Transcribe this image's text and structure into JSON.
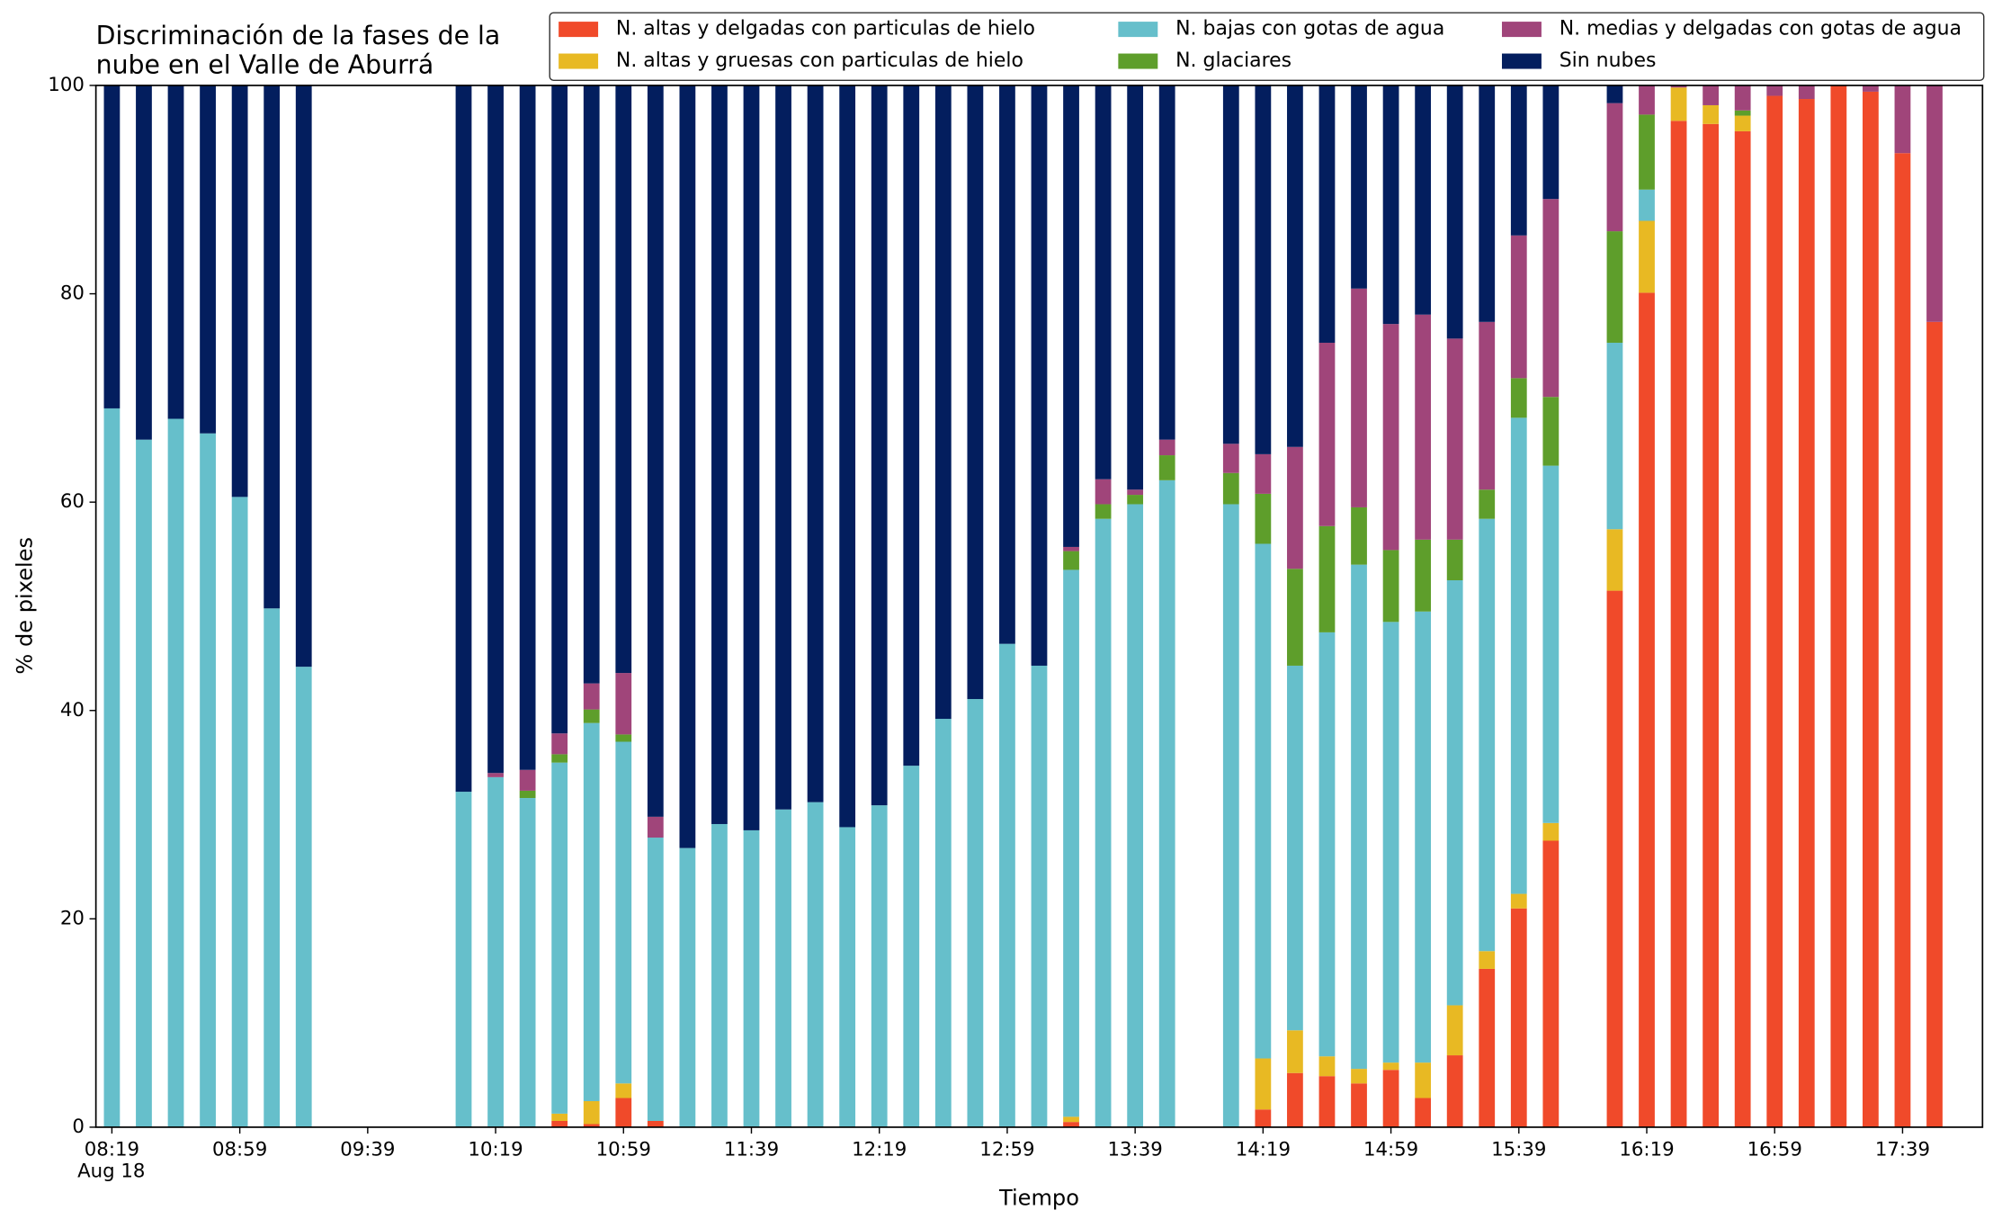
{
  "chart_data": {
    "type": "stacked_bar",
    "title": [
      "Discriminación de la fases de la",
      "nube en el Valle de Aburrá"
    ],
    "xlabel": "Tiempo",
    "ylabel": "% de pixeles",
    "date_label": "Aug 18",
    "x": [
      "08:19",
      "08:29",
      "08:39",
      "08:49",
      "08:59",
      "09:09",
      "09:19",
      "10:09",
      "10:19",
      "10:29",
      "10:39",
      "10:49",
      "10:59",
      "11:09",
      "11:19",
      "11:29",
      "11:39",
      "11:49",
      "11:59",
      "12:09",
      "12:19",
      "12:29",
      "12:39",
      "12:49",
      "12:59",
      "13:09",
      "13:19",
      "13:29",
      "13:39",
      "13:49",
      "14:09",
      "14:19",
      "14:29",
      "14:39",
      "14:49",
      "14:59",
      "15:09",
      "15:19",
      "15:29",
      "15:39",
      "15:49",
      "16:09",
      "16:19",
      "16:29",
      "16:39",
      "16:49",
      "16:59",
      "17:09",
      "17:19",
      "17:29",
      "17:39",
      "17:49"
    ],
    "xlim": [
      "08:14",
      "18:04"
    ],
    "xticks": [
      "08:19",
      "08:59",
      "09:39",
      "10:19",
      "10:59",
      "11:39",
      "12:19",
      "12:59",
      "13:39",
      "14:19",
      "14:59",
      "15:39",
      "16:19",
      "16:59",
      "17:39"
    ],
    "ylim": [
      0,
      100
    ],
    "yticks": [
      0,
      20,
      40,
      60,
      80,
      100
    ],
    "grid": false,
    "legend": "upper right",
    "series": [
      {
        "name": "N. altas y delgadas con particulas de hielo",
        "color": "#f04a2a",
        "values": [
          0,
          0,
          0,
          0,
          0,
          0,
          0,
          0,
          0,
          0,
          0.6,
          0.3,
          2.8,
          0.6,
          0,
          0,
          0,
          0,
          0,
          0,
          0,
          0,
          0,
          0,
          0,
          0,
          0.5,
          0,
          0,
          0,
          0,
          1.7,
          5.2,
          4.9,
          4.2,
          5.5,
          2.8,
          6.9,
          15.2,
          21.0,
          27.5,
          51.5,
          80.1,
          96.6,
          96.3,
          95.6,
          99.0,
          98.7,
          100,
          99.4,
          93.5,
          77.3
        ]
      },
      {
        "name": "N. altas y gruesas con particulas de hielo",
        "color": "#e8b923",
        "values": [
          0,
          0,
          0,
          0,
          0,
          0,
          0,
          0,
          0,
          0,
          0.7,
          2.2,
          1.4,
          0,
          0,
          0,
          0,
          0,
          0,
          0,
          0,
          0,
          0,
          0,
          0,
          0,
          0.5,
          0,
          0,
          0,
          0,
          4.9,
          4.1,
          1.9,
          1.4,
          0.7,
          3.4,
          4.8,
          1.7,
          1.4,
          1.7,
          5.9,
          6.9,
          3.2,
          1.8,
          1.5,
          0,
          0,
          0,
          0,
          0,
          0
        ]
      },
      {
        "name": "N. bajas con gotas de agua",
        "color": "#66bfcb",
        "values": [
          69.0,
          66.0,
          68.0,
          66.6,
          60.5,
          49.8,
          44.2,
          32.2,
          33.6,
          31.6,
          33.7,
          36.3,
          32.8,
          27.2,
          26.8,
          29.1,
          28.5,
          30.5,
          31.2,
          28.8,
          30.9,
          34.7,
          39.2,
          41.1,
          46.4,
          44.3,
          52.5,
          58.4,
          59.8,
          62.1,
          59.8,
          49.4,
          35.0,
          40.7,
          48.4,
          42.3,
          43.3,
          40.8,
          41.5,
          45.7,
          34.3,
          17.9,
          3.0,
          0,
          0,
          0,
          0,
          0,
          0,
          0,
          0,
          0
        ]
      },
      {
        "name": "N. glaciares",
        "color": "#5e9e2b",
        "values": [
          0,
          0,
          0,
          0,
          0,
          0,
          0,
          0,
          0,
          0.7,
          0.8,
          1.3,
          0.7,
          0,
          0,
          0,
          0,
          0,
          0,
          0,
          0,
          0,
          0,
          0,
          0,
          0,
          1.8,
          1.4,
          0.9,
          2.4,
          3.0,
          4.8,
          9.3,
          10.2,
          5.5,
          6.9,
          6.9,
          3.9,
          2.8,
          3.8,
          6.6,
          10.7,
          7.2,
          0,
          0,
          0.5,
          0,
          0,
          0,
          0,
          0,
          0
        ]
      },
      {
        "name": "N. medias y delgadas con gotas de agua",
        "color": "#a0457a",
        "values": [
          0,
          0,
          0,
          0,
          0,
          0,
          0,
          0,
          0.4,
          2.0,
          2.0,
          2.5,
          5.9,
          2.0,
          0,
          0,
          0,
          0,
          0,
          0,
          0,
          0,
          0,
          0,
          0,
          0,
          0.4,
          2.4,
          0.5,
          1.5,
          2.8,
          3.8,
          11.7,
          17.6,
          21.0,
          21.7,
          21.6,
          19.3,
          16.1,
          13.7,
          19.0,
          12.3,
          2.8,
          0.2,
          1.9,
          2.4,
          1.0,
          1.3,
          0,
          0.6,
          6.5,
          22.7
        ]
      },
      {
        "name": "Sin nubes",
        "color": "#031e5e",
        "values": [
          31.0,
          34.0,
          32.0,
          33.4,
          39.5,
          50.2,
          55.8,
          67.8,
          66.0,
          65.7,
          62.2,
          57.4,
          56.4,
          70.2,
          73.2,
          70.9,
          71.5,
          69.5,
          68.8,
          71.2,
          69.1,
          65.3,
          60.8,
          58.9,
          53.6,
          55.7,
          44.3,
          37.8,
          38.8,
          34.0,
          34.4,
          35.4,
          34.7,
          24.7,
          19.5,
          22.9,
          22.0,
          24.3,
          22.7,
          14.4,
          10.9,
          1.7,
          0,
          0,
          0,
          0,
          0,
          0,
          0,
          0,
          0,
          0
        ]
      }
    ]
  }
}
